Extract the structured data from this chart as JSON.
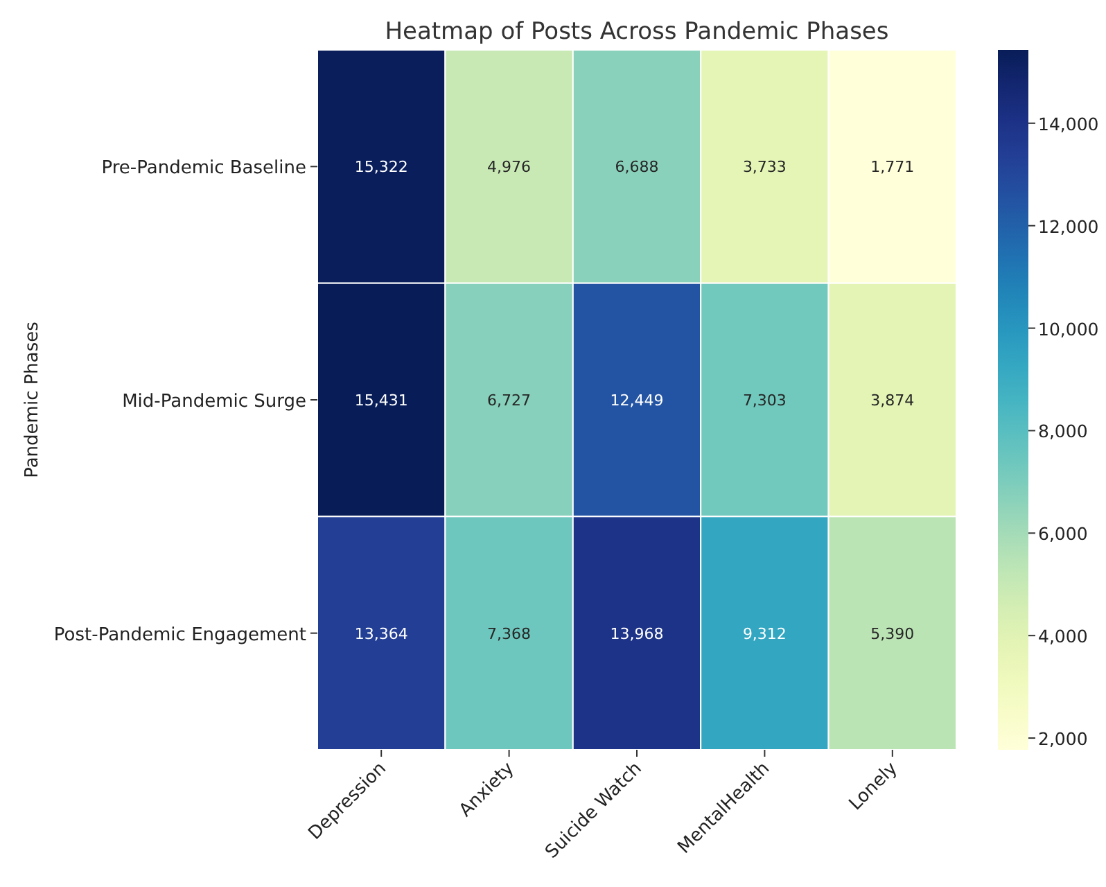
{
  "chart_data": {
    "type": "heatmap",
    "title": "Heatmap of Posts Across Pandemic Phases",
    "ylabel": "Pandemic Phases",
    "categories": [
      "Depression",
      "Anxiety",
      "Suicide Watch",
      "MentalHealth",
      "Lonely"
    ],
    "y_categories": [
      "Pre-Pandemic Baseline",
      "Mid-Pandemic Surge",
      "Post-Pandemic Engagement"
    ],
    "cells": [
      [
        15322,
        4976,
        6688,
        3733,
        1771
      ],
      [
        15431,
        6727,
        12449,
        7303,
        3874
      ],
      [
        13364,
        7368,
        13968,
        9312,
        5390
      ]
    ],
    "cell_labels": [
      [
        "15,322",
        "4,976",
        "6,688",
        "3,733",
        "1,771"
      ],
      [
        "15,431",
        "6,727",
        "12,449",
        "7,303",
        "3,874"
      ],
      [
        "13,364",
        "7,368",
        "13,968",
        "9,312",
        "5,390"
      ]
    ],
    "clim": [
      1771,
      15431
    ],
    "cticks": [
      {
        "value": 2000,
        "label": "2,000"
      },
      {
        "value": 4000,
        "label": "4,000"
      },
      {
        "value": 6000,
        "label": "6,000"
      },
      {
        "value": 8000,
        "label": "8,000"
      },
      {
        "value": 10000,
        "label": "10,000"
      },
      {
        "value": 12000,
        "label": "12,000"
      },
      {
        "value": 14000,
        "label": "14,000"
      }
    ]
  }
}
